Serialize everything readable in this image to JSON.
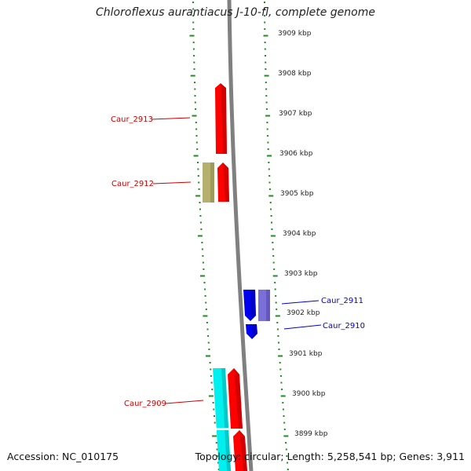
{
  "title": "Chloroflexus aurantiacus J-10-fl, complete genome",
  "accession": "Accession: NC_010175",
  "summary": "Topology: circular; Length: 5,258,541 bp; Genes: 3,911",
  "colors": {
    "forward_cds": "#ff0000",
    "reverse_cds": "#0000ee",
    "forward_other": "#b5b070",
    "reverse_other": "#7a6fd6",
    "rna": "#00f0f0",
    "backbone": "#808080",
    "ticks": "#228b22",
    "forward_label": "#cc0000",
    "reverse_label": "#0000cc"
  },
  "axis_labels": [
    "3909 kbp",
    "3908 kbp",
    "3907 kbp",
    "3906 kbp",
    "3905 kbp",
    "3904 kbp",
    "3903 kbp",
    "3902 kbp",
    "3901 kbp",
    "3900 kbp",
    "3899 kbp"
  ],
  "gene_labels": {
    "caur_2913": "Caur_2913",
    "caur_2912": "Caur_2912",
    "caur_2911": "Caur_2911",
    "caur_2910": "Caur_2910",
    "caur_2909": "Caur_2909"
  }
}
